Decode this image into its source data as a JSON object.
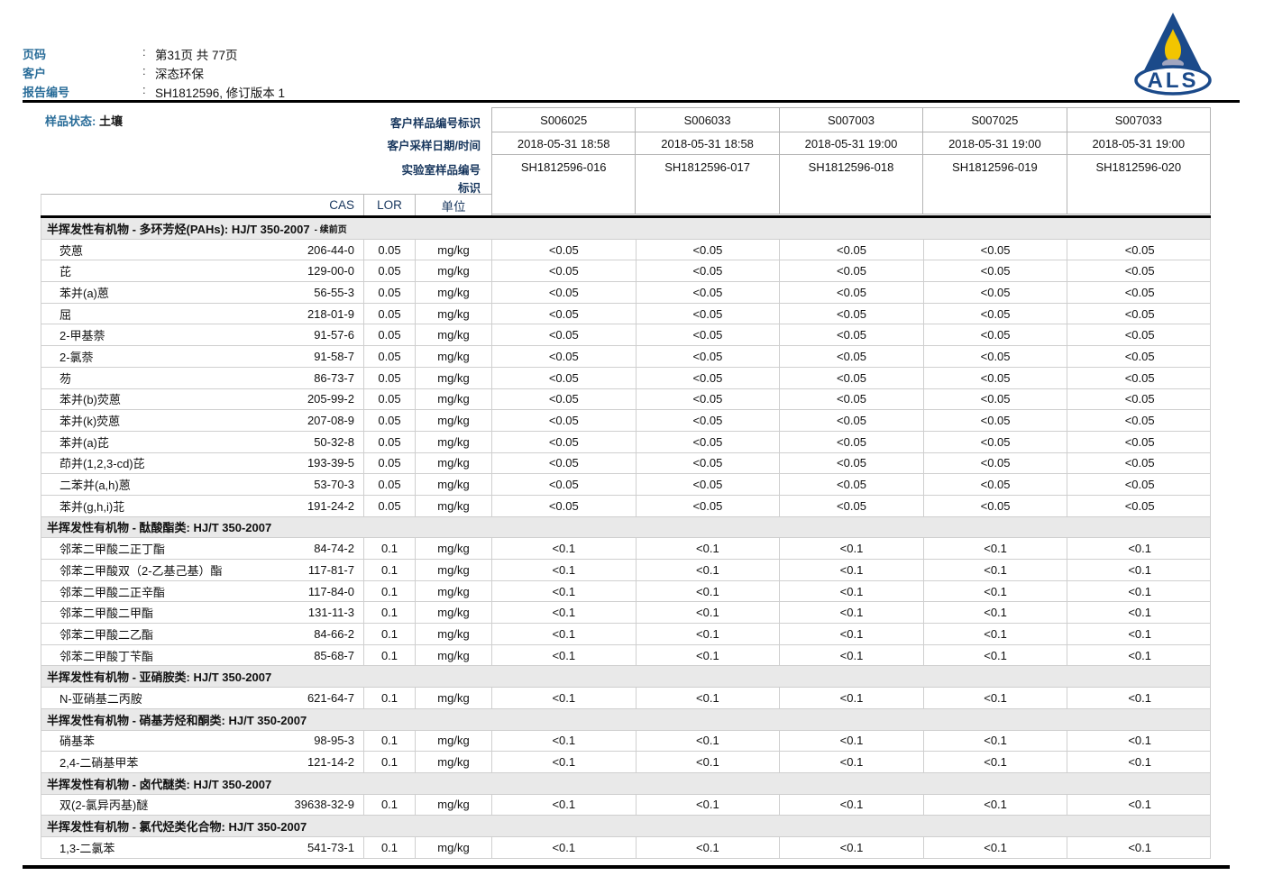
{
  "colors": {
    "accent_blue": "#2a6d99",
    "navy": "#17365d",
    "section_band": "#e9e9e9",
    "logo_navy": "#1b4a8a",
    "logo_yellow": "#f2c500"
  },
  "page_header": {
    "rows": [
      {
        "label": "页码",
        "value": "第31页 共 77页"
      },
      {
        "label": "客户",
        "value": "深态环保"
      },
      {
        "label": "报告编号",
        "value": "SH1812596, 修订版本 1"
      }
    ],
    "logo_text": "ALS"
  },
  "sample_header": {
    "sample_state_label": "样品状态:",
    "sample_state_value": "土壤",
    "row_labels": [
      "客户样品编号标识",
      "客户采样日期/时间",
      "实验室样品编号",
      "标识"
    ],
    "col_headers": {
      "cas": "CAS",
      "lor": "LOR",
      "unit": "单位"
    },
    "columns": [
      {
        "id": "S006025",
        "datetime": "2018-05-31 18:58",
        "lab_id": "SH1812596-016"
      },
      {
        "id": "S006033",
        "datetime": "2018-05-31 18:58",
        "lab_id": "SH1812596-017"
      },
      {
        "id": "S007003",
        "datetime": "2018-05-31 19:00",
        "lab_id": "SH1812596-018"
      },
      {
        "id": "S007025",
        "datetime": "2018-05-31 19:00",
        "lab_id": "SH1812596-019"
      },
      {
        "id": "S007033",
        "datetime": "2018-05-31 19:00",
        "lab_id": "SH1812596-020"
      }
    ]
  },
  "table": {
    "sections": [
      {
        "title": "半挥发性有机物 - 多环芳烃(PAHs): HJ/T 350-2007",
        "suffix": "- 续前页",
        "rows": [
          {
            "name": "荧蒽",
            "cas": "206-44-0",
            "lor": "0.05",
            "unit": "mg/kg",
            "values": [
              "<0.05",
              "<0.05",
              "<0.05",
              "<0.05",
              "<0.05"
            ]
          },
          {
            "name": "芘",
            "cas": "129-00-0",
            "lor": "0.05",
            "unit": "mg/kg",
            "values": [
              "<0.05",
              "<0.05",
              "<0.05",
              "<0.05",
              "<0.05"
            ]
          },
          {
            "name": "苯并(a)蒽",
            "cas": "56-55-3",
            "lor": "0.05",
            "unit": "mg/kg",
            "values": [
              "<0.05",
              "<0.05",
              "<0.05",
              "<0.05",
              "<0.05"
            ]
          },
          {
            "name": "屈",
            "cas": "218-01-9",
            "lor": "0.05",
            "unit": "mg/kg",
            "values": [
              "<0.05",
              "<0.05",
              "<0.05",
              "<0.05",
              "<0.05"
            ]
          },
          {
            "name": "2-甲基萘",
            "cas": "91-57-6",
            "lor": "0.05",
            "unit": "mg/kg",
            "values": [
              "<0.05",
              "<0.05",
              "<0.05",
              "<0.05",
              "<0.05"
            ]
          },
          {
            "name": "2-氯萘",
            "cas": "91-58-7",
            "lor": "0.05",
            "unit": "mg/kg",
            "values": [
              "<0.05",
              "<0.05",
              "<0.05",
              "<0.05",
              "<0.05"
            ]
          },
          {
            "name": "芴",
            "cas": "86-73-7",
            "lor": "0.05",
            "unit": "mg/kg",
            "values": [
              "<0.05",
              "<0.05",
              "<0.05",
              "<0.05",
              "<0.05"
            ]
          },
          {
            "name": "苯并(b)荧蒽",
            "cas": "205-99-2",
            "lor": "0.05",
            "unit": "mg/kg",
            "values": [
              "<0.05",
              "<0.05",
              "<0.05",
              "<0.05",
              "<0.05"
            ]
          },
          {
            "name": "苯并(k)荧蒽",
            "cas": "207-08-9",
            "lor": "0.05",
            "unit": "mg/kg",
            "values": [
              "<0.05",
              "<0.05",
              "<0.05",
              "<0.05",
              "<0.05"
            ]
          },
          {
            "name": "苯并(a)芘",
            "cas": "50-32-8",
            "lor": "0.05",
            "unit": "mg/kg",
            "values": [
              "<0.05",
              "<0.05",
              "<0.05",
              "<0.05",
              "<0.05"
            ]
          },
          {
            "name": "茚并(1,2,3-cd)芘",
            "cas": "193-39-5",
            "lor": "0.05",
            "unit": "mg/kg",
            "values": [
              "<0.05",
              "<0.05",
              "<0.05",
              "<0.05",
              "<0.05"
            ]
          },
          {
            "name": "二苯并(a,h)蒽",
            "cas": "53-70-3",
            "lor": "0.05",
            "unit": "mg/kg",
            "values": [
              "<0.05",
              "<0.05",
              "<0.05",
              "<0.05",
              "<0.05"
            ]
          },
          {
            "name": "苯并(g,h,i)苝",
            "cas": "191-24-2",
            "lor": "0.05",
            "unit": "mg/kg",
            "values": [
              "<0.05",
              "<0.05",
              "<0.05",
              "<0.05",
              "<0.05"
            ]
          }
        ]
      },
      {
        "title": "半挥发性有机物 - 酞酸酯类: HJ/T 350-2007",
        "suffix": "",
        "rows": [
          {
            "name": "邻苯二甲酸二正丁酯",
            "cas": "84-74-2",
            "lor": "0.1",
            "unit": "mg/kg",
            "values": [
              "<0.1",
              "<0.1",
              "<0.1",
              "<0.1",
              "<0.1"
            ]
          },
          {
            "name": "邻苯二甲酸双（2-乙基己基）酯",
            "cas": "117-81-7",
            "lor": "0.1",
            "unit": "mg/kg",
            "values": [
              "<0.1",
              "<0.1",
              "<0.1",
              "<0.1",
              "<0.1"
            ]
          },
          {
            "name": "邻苯二甲酸二正辛酯",
            "cas": "117-84-0",
            "lor": "0.1",
            "unit": "mg/kg",
            "values": [
              "<0.1",
              "<0.1",
              "<0.1",
              "<0.1",
              "<0.1"
            ]
          },
          {
            "name": "邻苯二甲酸二甲酯",
            "cas": "131-11-3",
            "lor": "0.1",
            "unit": "mg/kg",
            "values": [
              "<0.1",
              "<0.1",
              "<0.1",
              "<0.1",
              "<0.1"
            ]
          },
          {
            "name": "邻苯二甲酸二乙酯",
            "cas": "84-66-2",
            "lor": "0.1",
            "unit": "mg/kg",
            "values": [
              "<0.1",
              "<0.1",
              "<0.1",
              "<0.1",
              "<0.1"
            ]
          },
          {
            "name": "邻苯二甲酸丁苄酯",
            "cas": "85-68-7",
            "lor": "0.1",
            "unit": "mg/kg",
            "values": [
              "<0.1",
              "<0.1",
              "<0.1",
              "<0.1",
              "<0.1"
            ]
          }
        ]
      },
      {
        "title": "半挥发性有机物 - 亚硝胺类: HJ/T 350-2007",
        "suffix": "",
        "rows": [
          {
            "name": "N-亚硝基二丙胺",
            "cas": "621-64-7",
            "lor": "0.1",
            "unit": "mg/kg",
            "values": [
              "<0.1",
              "<0.1",
              "<0.1",
              "<0.1",
              "<0.1"
            ]
          }
        ]
      },
      {
        "title": "半挥发性有机物 - 硝基芳烃和酮类: HJ/T 350-2007",
        "suffix": "",
        "rows": [
          {
            "name": "硝基苯",
            "cas": "98-95-3",
            "lor": "0.1",
            "unit": "mg/kg",
            "values": [
              "<0.1",
              "<0.1",
              "<0.1",
              "<0.1",
              "<0.1"
            ]
          },
          {
            "name": "2,4-二硝基甲苯",
            "cas": "121-14-2",
            "lor": "0.1",
            "unit": "mg/kg",
            "values": [
              "<0.1",
              "<0.1",
              "<0.1",
              "<0.1",
              "<0.1"
            ]
          }
        ]
      },
      {
        "title": "半挥发性有机物 - 卤代醚类: HJ/T 350-2007",
        "suffix": "",
        "rows": [
          {
            "name": "双(2-氯异丙基)醚",
            "cas": "39638-32-9",
            "lor": "0.1",
            "unit": "mg/kg",
            "values": [
              "<0.1",
              "<0.1",
              "<0.1",
              "<0.1",
              "<0.1"
            ]
          }
        ]
      },
      {
        "title": "半挥发性有机物 - 氯代烃类化合物: HJ/T 350-2007",
        "suffix": "",
        "rows": [
          {
            "name": "1,3-二氯苯",
            "cas": "541-73-1",
            "lor": "0.1",
            "unit": "mg/kg",
            "values": [
              "<0.1",
              "<0.1",
              "<0.1",
              "<0.1",
              "<0.1"
            ]
          }
        ]
      }
    ]
  }
}
